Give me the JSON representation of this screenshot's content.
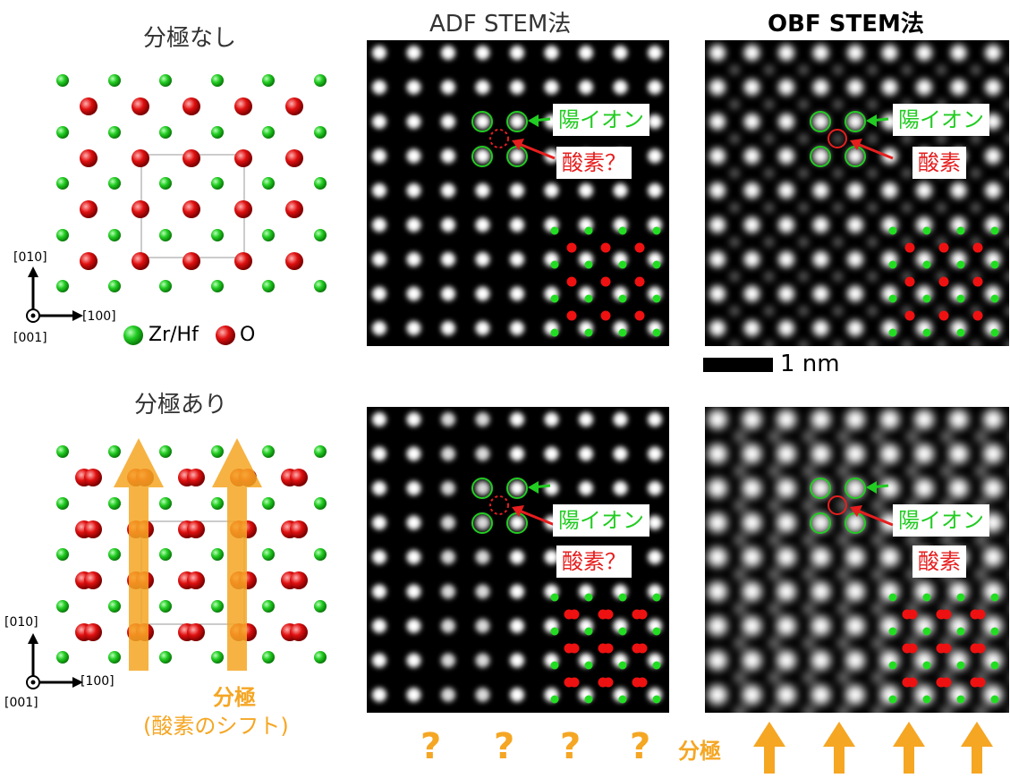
{
  "headings": {
    "no_polarization": "分極なし",
    "with_polarization": "分極あり",
    "adf": "ADF STEM法",
    "obf": "OBF STEM法"
  },
  "legend": {
    "cation": "Zr/Hf",
    "oxygen": "O",
    "cation_color": "#22cc22",
    "oxygen_color": "#e01010"
  },
  "axes": {
    "top": {
      "y": "[010]",
      "x": "[100]",
      "z": "[001]"
    },
    "bottom": {
      "y": "[010]",
      "x": "[100]",
      "z": "[001]"
    }
  },
  "callouts": {
    "adf_top": {
      "cation": "陽イオン",
      "oxygen": "酸素？"
    },
    "obf_top": {
      "cation": "陽イオン",
      "oxygen": "酸素"
    },
    "adf_bottom": {
      "cation": "陽イオン",
      "oxygen": "酸素？"
    },
    "obf_bottom": {
      "cation": "陽イオン",
      "oxygen": "酸素"
    }
  },
  "scale_bar": {
    "label": "1 nm"
  },
  "polarization": {
    "label": "分極",
    "sublabel": "(酸素のシフト)",
    "bottom_label": "分極",
    "question_marks": [
      "?",
      "?",
      "?",
      "?"
    ],
    "arrow_color": "#f5a623"
  }
}
